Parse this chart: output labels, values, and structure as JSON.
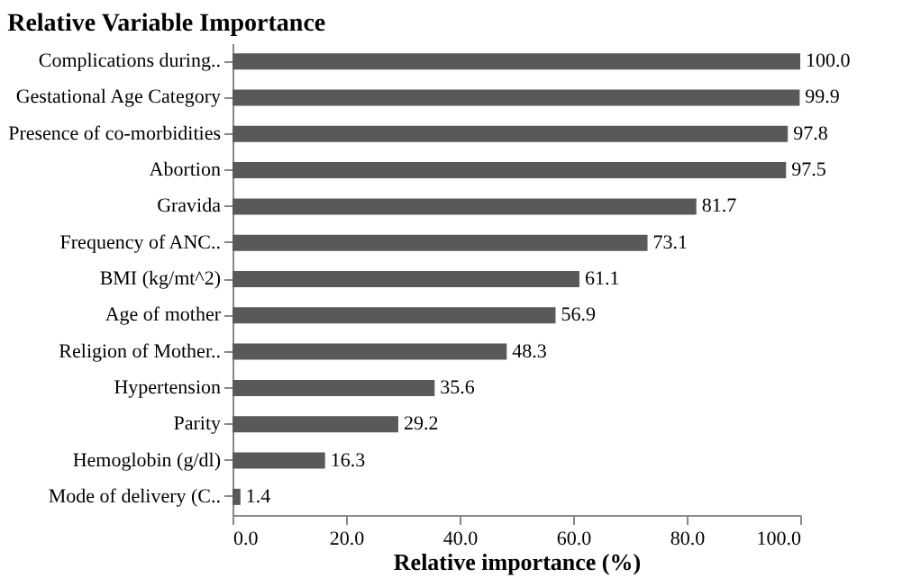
{
  "chart_data": {
    "type": "bar",
    "orientation": "horizontal",
    "title": "Relative Variable Importance",
    "xlabel": "Relative importance (%)",
    "categories": [
      "Complications during..",
      "Gestational Age Category",
      "Presence of co-morbidities",
      "Abortion",
      "Gravida",
      "Frequency of ANC..",
      "BMI (kg/mt^2)",
      "Age of mother",
      "Religion of Mother..",
      "Hypertension",
      "Parity",
      "Hemoglobin (g/dl)",
      "Mode of delivery (C.."
    ],
    "values": [
      100.0,
      99.9,
      97.8,
      97.5,
      81.7,
      73.1,
      61.1,
      56.9,
      48.3,
      35.6,
      29.2,
      16.3,
      1.4
    ],
    "value_labels": [
      "100.0",
      "99.9",
      "97.8",
      "97.5",
      "81.7",
      "73.1",
      "61.1",
      "56.9",
      "48.3",
      "35.6",
      "29.2",
      "16.3",
      "1.4"
    ],
    "color": "#595959",
    "xlim": [
      0,
      100
    ],
    "xticks": [
      {
        "value": 0,
        "label": "0.0"
      },
      {
        "value": 20,
        "label": "20.0"
      },
      {
        "value": 40,
        "label": "40.0"
      },
      {
        "value": 60,
        "label": "60.0"
      },
      {
        "value": 80,
        "label": "80.0"
      },
      {
        "value": 100,
        "label": "100.0"
      }
    ],
    "grid": false
  }
}
